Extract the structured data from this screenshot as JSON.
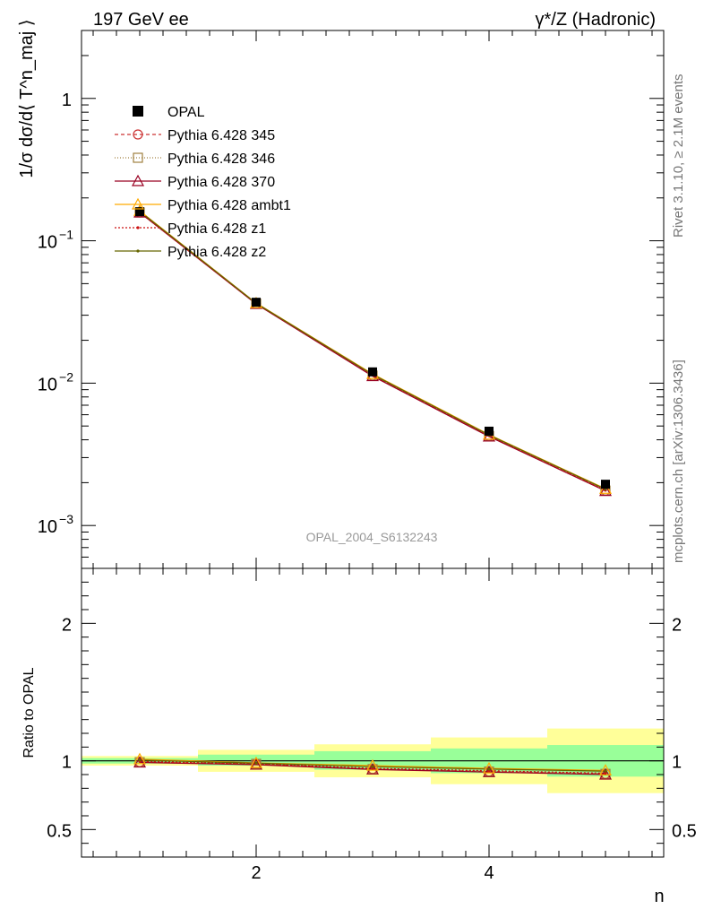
{
  "header": {
    "left": "197 GeV ee",
    "right": "γ*/Z (Hadronic)"
  },
  "side_text": {
    "rivet": "Rivet 3.1.10, ≥ 2.1M events",
    "mcplots": "mcplots.cern.ch [arXiv:1306.3436]"
  },
  "watermark": "OPAL_2004_S6132243",
  "chart_data": [
    {
      "type": "line",
      "panel": "main",
      "ylabel": "1/σ dσ/d⟨ T^n_maj ⟩",
      "yscale": "log",
      "ylim": [
        0.0005,
        3
      ],
      "xlim": [
        0.5,
        5.5
      ],
      "ytick_labels": [
        {
          "value": 1,
          "base": "1",
          "exp": ""
        },
        {
          "value": 0.1,
          "base": "10",
          "exp": "−1"
        },
        {
          "value": 0.01,
          "base": "10",
          "exp": "−2"
        },
        {
          "value": 0.001,
          "base": "10",
          "exp": "−3"
        }
      ],
      "x": [
        1,
        2,
        3,
        4,
        5
      ],
      "data": {
        "name": "OPAL",
        "values": [
          0.16,
          0.037,
          0.012,
          0.0046,
          0.00195
        ]
      },
      "series": [
        {
          "name": "Pythia 6.428 345",
          "color": "#cc3333",
          "marker": "circle",
          "dash": "4,3",
          "values": [
            0.158,
            0.0362,
            0.0113,
            0.00425,
            0.00176
          ]
        },
        {
          "name": "Pythia 6.428 346",
          "color": "#a08040",
          "marker": "square",
          "dash": "1,2",
          "values": [
            0.158,
            0.0362,
            0.0113,
            0.00425,
            0.00176
          ]
        },
        {
          "name": "Pythia 6.428 370",
          "color": "#990022",
          "marker": "triangle",
          "dash": "",
          "values": [
            0.158,
            0.036,
            0.0112,
            0.00422,
            0.00175
          ]
        },
        {
          "name": "Pythia 6.428 ambt1",
          "color": "#ffaa00",
          "marker": "triangle",
          "dash": "",
          "values": [
            0.162,
            0.0365,
            0.0116,
            0.00435,
            0.00181
          ]
        },
        {
          "name": "Pythia 6.428 z1",
          "color": "#cc1111",
          "marker": "dot",
          "dash": "2,2",
          "values": [
            0.159,
            0.0362,
            0.0114,
            0.00428,
            0.00177
          ]
        },
        {
          "name": "Pythia 6.428 z2",
          "color": "#666600",
          "marker": "dot",
          "dash": "",
          "values": [
            0.161,
            0.0364,
            0.0115,
            0.00432,
            0.0018
          ]
        }
      ]
    },
    {
      "type": "line",
      "panel": "ratio",
      "ylabel": "Ratio to OPAL",
      "xlabel": "n",
      "ylim": [
        0.3,
        2.4
      ],
      "xlim": [
        0.5,
        5.5
      ],
      "ytick_labels": [
        "0.5",
        "1",
        "2"
      ],
      "xtick_labels": [
        "2",
        "4"
      ],
      "bands": {
        "x_edges": [
          0.5,
          1.5,
          2.5,
          3.5,
          4.5,
          5.5
        ],
        "stat": [
          [
            0.98,
            1.02
          ],
          [
            0.965,
            1.045
          ],
          [
            0.935,
            1.07
          ],
          [
            0.91,
            1.09
          ],
          [
            0.885,
            1.115
          ]
        ],
        "total": [
          [
            0.965,
            1.035
          ],
          [
            0.92,
            1.08
          ],
          [
            0.88,
            1.12
          ],
          [
            0.83,
            1.17
          ],
          [
            0.765,
            1.235
          ]
        ]
      },
      "series": [
        {
          "name": "Pythia 6.428 345",
          "values": [
            0.99,
            0.978,
            0.94,
            0.922,
            0.905
          ]
        },
        {
          "name": "Pythia 6.428 346",
          "values": [
            0.99,
            0.978,
            0.94,
            0.922,
            0.905
          ]
        },
        {
          "name": "Pythia 6.428 370",
          "values": [
            0.988,
            0.972,
            0.937,
            0.918,
            0.9
          ]
        },
        {
          "name": "Pythia 6.428 ambt1",
          "values": [
            1.012,
            0.985,
            0.965,
            0.945,
            0.93
          ]
        },
        {
          "name": "Pythia 6.428 z1",
          "values": [
            0.995,
            0.978,
            0.945,
            0.928,
            0.91
          ]
        },
        {
          "name": "Pythia 6.428 z2",
          "values": [
            1.005,
            0.983,
            0.958,
            0.94,
            0.925
          ]
        }
      ]
    }
  ]
}
